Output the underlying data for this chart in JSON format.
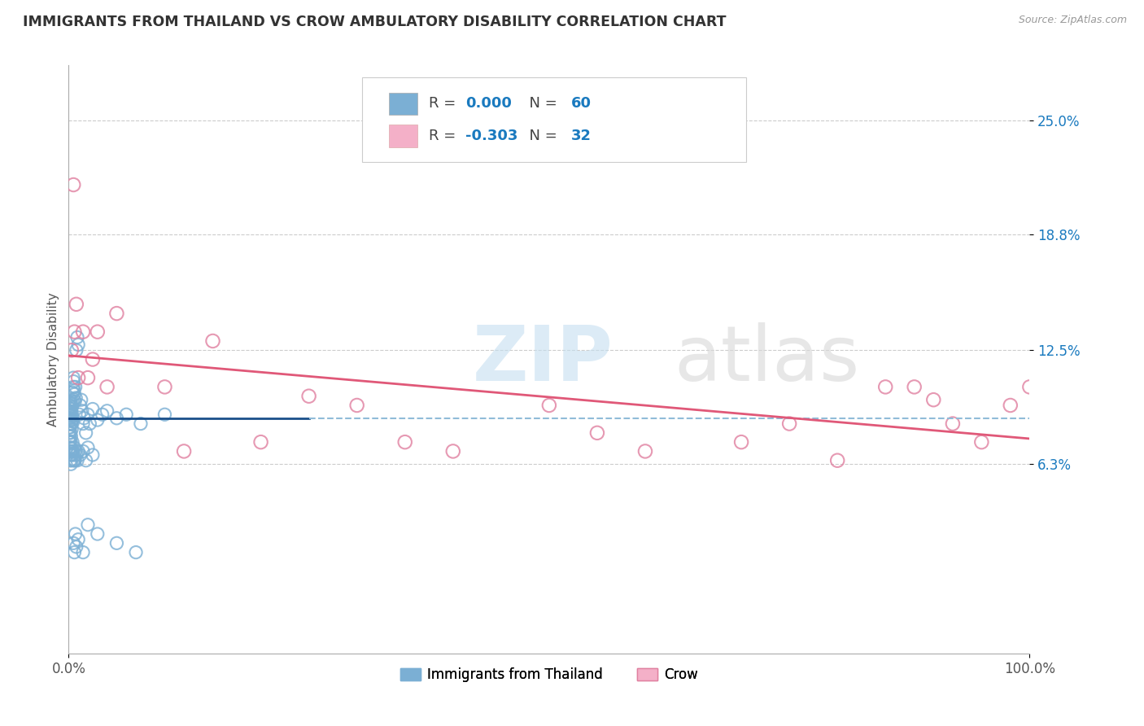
{
  "title": "IMMIGRANTS FROM THAILAND VS CROW AMBULATORY DISABILITY CORRELATION CHART",
  "source_text": "Source: ZipAtlas.com",
  "ylabel": "Ambulatory Disability",
  "watermark_zip": "ZIP",
  "watermark_atlas": "atlas",
  "xlim": [
    0.0,
    100.0
  ],
  "ylim": [
    -4.0,
    28.0
  ],
  "ytick_vals": [
    6.3,
    12.5,
    18.8,
    25.0
  ],
  "ytick_labels": [
    "6.3%",
    "12.5%",
    "18.8%",
    "25.0%"
  ],
  "xtick_vals": [
    0.0,
    100.0
  ],
  "xtick_labels": [
    "0.0%",
    "100.0%"
  ],
  "blue_color": "#7bafd4",
  "blue_edge_color": "#5a9bc4",
  "pink_color": "#f4b0c8",
  "pink_edge_color": "#e080a0",
  "trend_blue_color": "#1a4f8a",
  "trend_pink_color": "#e05878",
  "trend_blue_dash_color": "#90bcd8",
  "legend_r_color": "#1a7abf",
  "legend_n_color": "#1a7abf",
  "legend_dark": "#444444",
  "blue_label": "Immigrants from Thailand",
  "pink_label": "Crow",
  "blue_scatter_x": [
    0.05,
    0.08,
    0.1,
    0.12,
    0.15,
    0.18,
    0.2,
    0.22,
    0.25,
    0.28,
    0.3,
    0.32,
    0.35,
    0.38,
    0.4,
    0.42,
    0.45,
    0.48,
    0.5,
    0.52,
    0.55,
    0.58,
    0.6,
    0.65,
    0.7,
    0.75,
    0.8,
    0.9,
    1.0,
    1.1,
    1.2,
    1.3,
    1.4,
    1.5,
    1.6,
    1.8,
    2.0,
    2.2,
    2.5,
    3.0,
    3.5,
    4.0,
    5.0,
    6.0,
    7.5,
    10.0,
    0.06,
    0.09,
    0.11,
    0.14,
    0.16,
    0.19,
    0.21,
    0.24,
    0.26,
    0.29,
    0.31,
    0.36,
    0.44,
    0.62
  ],
  "blue_scatter_y": [
    9.0,
    8.8,
    9.2,
    9.5,
    8.3,
    9.8,
    8.0,
    9.1,
    9.3,
    8.5,
    9.6,
    8.2,
    9.4,
    8.7,
    10.2,
    9.7,
    8.6,
    10.5,
    11.0,
    10.8,
    10.3,
    9.8,
    10.1,
    9.7,
    10.5,
    9.9,
    12.5,
    13.2,
    12.8,
    9.0,
    9.5,
    9.8,
    9.2,
    8.5,
    8.8,
    8.0,
    9.0,
    8.5,
    9.3,
    8.7,
    9.0,
    9.2,
    8.8,
    9.0,
    8.5,
    9.0,
    8.3,
    8.7,
    9.1,
    8.9,
    9.6,
    9.4,
    8.8,
    9.3,
    9.0,
    8.5,
    8.7,
    9.0,
    7.0,
    6.5
  ],
  "blue_below_x": [
    0.05,
    0.07,
    0.09,
    0.1,
    0.12,
    0.14,
    0.16,
    0.18,
    0.2,
    0.22,
    0.24,
    0.26,
    0.28,
    0.3,
    0.35,
    0.4,
    0.45,
    0.5,
    0.55,
    0.6,
    0.65,
    0.7,
    0.8,
    0.9,
    1.0,
    1.2,
    1.5,
    1.8,
    2.0,
    2.5
  ],
  "blue_below_y": [
    8.0,
    7.5,
    7.8,
    7.2,
    7.5,
    7.0,
    6.5,
    7.2,
    6.8,
    7.5,
    6.3,
    7.8,
    6.5,
    7.0,
    6.8,
    7.5,
    7.0,
    6.5,
    6.8,
    7.2,
    6.5,
    7.0,
    6.8,
    6.5,
    7.0,
    6.8,
    7.0,
    6.5,
    7.2,
    6.8
  ],
  "blue_low_x": [
    0.5,
    0.6,
    0.7,
    0.8,
    1.0,
    1.5,
    2.0,
    3.0,
    5.0,
    7.0
  ],
  "blue_low_y": [
    2.0,
    1.5,
    2.5,
    1.8,
    2.2,
    1.5,
    3.0,
    2.5,
    2.0,
    1.5
  ],
  "pink_scatter_x": [
    0.5,
    0.8,
    1.5,
    2.0,
    3.0,
    5.0,
    10.0,
    15.0,
    20.0,
    25.0,
    30.0,
    35.0,
    40.0,
    50.0,
    60.0,
    70.0,
    80.0,
    85.0,
    90.0,
    95.0,
    0.3,
    1.0,
    2.5,
    0.6,
    4.0,
    12.0,
    55.0,
    75.0,
    88.0,
    92.0,
    98.0,
    100.0
  ],
  "pink_scatter_y": [
    21.5,
    15.0,
    13.5,
    11.0,
    13.5,
    14.5,
    10.5,
    13.0,
    7.5,
    10.0,
    9.5,
    7.5,
    7.0,
    9.5,
    7.0,
    7.5,
    6.5,
    10.5,
    9.8,
    7.5,
    12.5,
    11.0,
    12.0,
    13.5,
    10.5,
    7.0,
    8.0,
    8.5,
    10.5,
    8.5,
    9.5,
    10.5
  ],
  "blue_trend_x0": 0.0,
  "blue_trend_x1": 25.0,
  "blue_trend_y": 8.8,
  "blue_dash_x0": 25.0,
  "blue_dash_x1": 100.0,
  "blue_dash_y": 8.8
}
